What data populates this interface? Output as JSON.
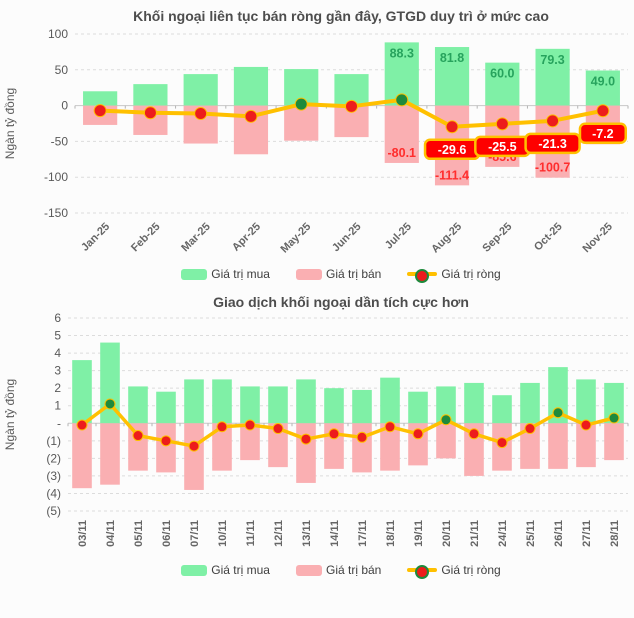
{
  "colors": {
    "background": "#fcfcfc",
    "buy": "#7ff0a6",
    "sell": "#faafb2",
    "net_line": "#ffc000",
    "net_dot_negative": "#ed1c1c",
    "net_dot_positive": "#1e8a3c",
    "buy_label_text": "#27a35d",
    "sell_label_text": "#ff2d2d",
    "badge_background": "#fe0000",
    "badge_border": "#ffc000",
    "badge_text": "#ffffff",
    "title_text": "#4d4d4d",
    "tick_text": "#595959",
    "xtick_text": "#666666",
    "grid": "#dcdcdc",
    "zero_line": "#c8c8c8"
  },
  "chart_data": [
    {
      "type": "bar+line",
      "title": "Khối ngoại liên tục bán ròng gần đây, GTGD duy trì ở mức cao",
      "ylabel": "Ngàn tỷ đồng",
      "ylim": [
        -150,
        100
      ],
      "grid": true,
      "legend_position": "bottom",
      "yticks": [
        {
          "v": 100,
          "label": "100"
        },
        {
          "v": 50,
          "label": "50"
        },
        {
          "v": 0,
          "label": "0"
        },
        {
          "v": -50,
          "label": "-50"
        },
        {
          "v": -100,
          "label": "-100"
        },
        {
          "v": -150,
          "label": "-150"
        }
      ],
      "categories": [
        "Jan-25",
        "Feb-25",
        "Mar-25",
        "Apr-25",
        "May-25",
        "Jun-25",
        "Jul-25",
        "Aug-25",
        "Sep-25",
        "Oct-25",
        "Nov-25"
      ],
      "series": [
        {
          "name": "Giá trị mua",
          "kind": "bar",
          "color_key": "buy",
          "values": [
            20,
            30,
            44,
            54,
            51,
            44,
            88.3,
            81.8,
            60,
            79.3,
            49
          ],
          "labels": [
            null,
            null,
            null,
            null,
            null,
            null,
            "88.3",
            "81.8",
            "60.0",
            "79.3",
            "49.0"
          ]
        },
        {
          "name": "Giá trị bán",
          "kind": "bar",
          "color_key": "sell",
          "values": [
            -27,
            -41,
            -53,
            -68,
            -49,
            -44,
            -80.1,
            -111.4,
            -85.6,
            -100.7,
            -54
          ],
          "labels": [
            null,
            null,
            null,
            null,
            null,
            null,
            "-80.1",
            "-111.4",
            "-85.6",
            "-100.7",
            null
          ]
        },
        {
          "name": "Giá trị ròng",
          "kind": "line",
          "color_key": "net_line",
          "values": [
            -7,
            -10,
            -11,
            -15,
            2,
            -1,
            8,
            -29.6,
            -25.5,
            -21.3,
            -7.2
          ],
          "badges": [
            null,
            null,
            null,
            null,
            null,
            null,
            null,
            "-29.6",
            "-25.5",
            "-21.3",
            "-7.2"
          ]
        }
      ],
      "legend": [
        "Giá trị mua",
        "Giá trị bán",
        "Giá trị ròng"
      ]
    },
    {
      "type": "bar+line",
      "title": "Giao dịch khối ngoại dần tích cực hơn",
      "ylabel": "Ngàn tỷ đồng",
      "ylim": [
        -5,
        6
      ],
      "grid": true,
      "legend_position": "bottom",
      "yticks": [
        {
          "v": 6,
          "label": "6"
        },
        {
          "v": 5,
          "label": "5"
        },
        {
          "v": 4,
          "label": "4"
        },
        {
          "v": 3,
          "label": "3"
        },
        {
          "v": 2,
          "label": "2"
        },
        {
          "v": 1,
          "label": "1"
        },
        {
          "v": 0,
          "label": "-"
        },
        {
          "v": -1,
          "label": "(1)"
        },
        {
          "v": -2,
          "label": "(2)"
        },
        {
          "v": -3,
          "label": "(3)"
        },
        {
          "v": -4,
          "label": "(4)"
        },
        {
          "v": -5,
          "label": "(5)"
        }
      ],
      "categories": [
        "03/11",
        "04/11",
        "05/11",
        "06/11",
        "07/11",
        "10/11",
        "11/11",
        "12/11",
        "13/11",
        "14/11",
        "17/11",
        "18/11",
        "19/11",
        "20/11",
        "21/11",
        "24/11",
        "25/11",
        "26/11",
        "27/11",
        "28/11"
      ],
      "series": [
        {
          "name": "Giá trị mua",
          "kind": "bar",
          "color_key": "buy",
          "values": [
            3.6,
            4.6,
            2.1,
            1.8,
            2.5,
            2.5,
            2.1,
            2.1,
            2.5,
            2.0,
            1.9,
            2.6,
            1.8,
            2.1,
            2.3,
            1.6,
            2.3,
            3.2,
            2.5,
            2.3
          ],
          "labels": []
        },
        {
          "name": "Giá trị bán",
          "kind": "bar",
          "color_key": "sell",
          "values": [
            -3.7,
            -3.5,
            -2.7,
            -2.8,
            -3.8,
            -2.7,
            -2.1,
            -2.5,
            -3.4,
            -2.6,
            -2.8,
            -2.7,
            -2.4,
            -2.0,
            -3.0,
            -2.7,
            -2.6,
            -2.6,
            -2.5,
            -2.1
          ],
          "labels": []
        },
        {
          "name": "Giá trị ròng",
          "kind": "line",
          "color_key": "net_line",
          "values": [
            -0.1,
            1.1,
            -0.7,
            -1.0,
            -1.3,
            -0.2,
            -0.1,
            -0.3,
            -0.9,
            -0.6,
            -0.8,
            -0.2,
            -0.6,
            0.2,
            -0.6,
            -1.1,
            -0.3,
            0.6,
            -0.1,
            0.3
          ],
          "badges": []
        }
      ],
      "legend": [
        "Giá trị mua",
        "Giá trị bán",
        "Giá trị ròng"
      ]
    }
  ]
}
